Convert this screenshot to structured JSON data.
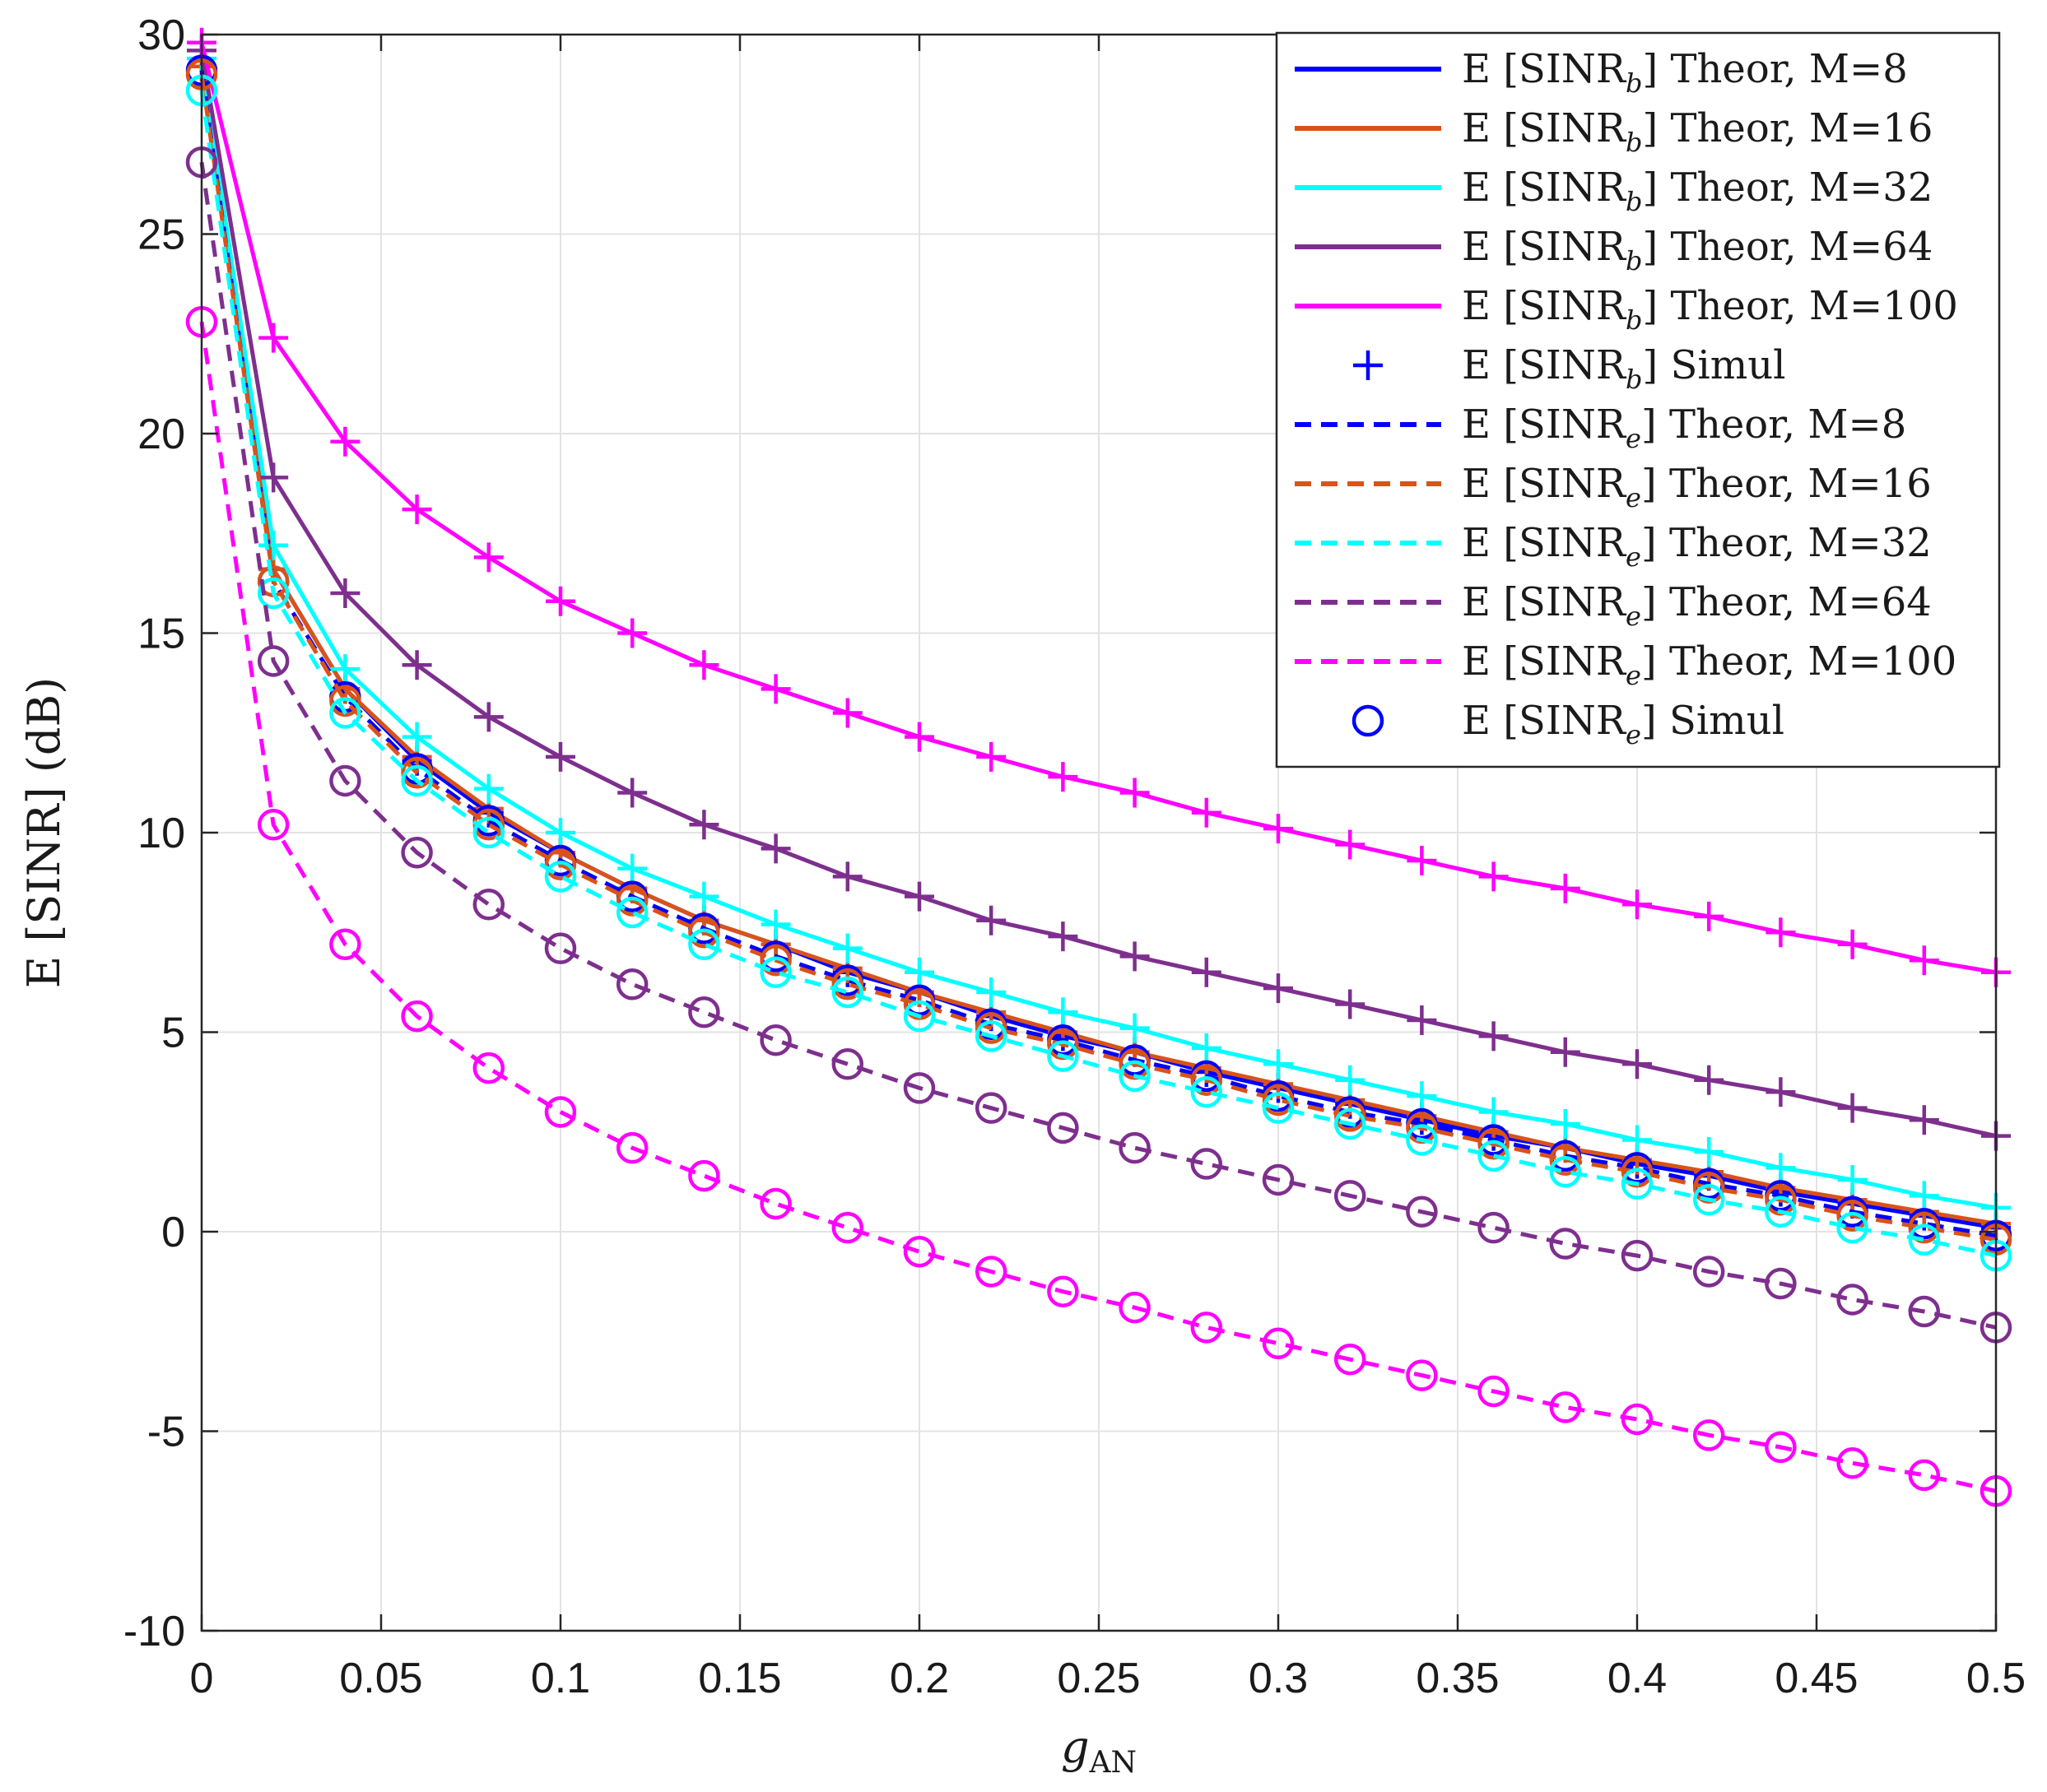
{
  "chart_data": {
    "type": "line",
    "title": "",
    "xlabel": "g",
    "xlabel_sub": "AN",
    "ylabel": "E [SINR] (dB)",
    "xlim": [
      0,
      0.5
    ],
    "ylim": [
      -10,
      30
    ],
    "grid": true,
    "legend_position": "top-right",
    "x_ticks": [
      "0",
      "0.05",
      "0.1",
      "0.15",
      "0.2",
      "0.25",
      "0.3",
      "0.35",
      "0.4",
      "0.45",
      "0.5"
    ],
    "y_ticks": [
      "-10",
      "-5",
      "0",
      "5",
      "10",
      "15",
      "20",
      "25",
      "30"
    ],
    "x_tick_values": [
      0,
      0.05,
      0.1,
      0.15,
      0.2,
      0.25,
      0.3,
      0.35,
      0.4,
      0.45,
      0.5
    ],
    "y_tick_values": [
      -10,
      -5,
      0,
      5,
      10,
      15,
      20,
      25,
      30
    ],
    "x": [
      0,
      0.02,
      0.04,
      0.06,
      0.08,
      0.1,
      0.12,
      0.14,
      0.16,
      0.18,
      0.2,
      0.22,
      0.24,
      0.26,
      0.28,
      0.3,
      0.32,
      0.34,
      0.36,
      0.38,
      0.4,
      0.42,
      0.44,
      0.46,
      0.48,
      0.5
    ],
    "series": [
      {
        "name": "E [SINR_b] Theor, M=8",
        "kind": "bob",
        "color": "#0000ff",
        "dashed": false,
        "marker": "plus",
        "values": [
          29.2,
          16.6,
          13.6,
          11.8,
          10.5,
          9.5,
          8.6,
          7.8,
          7.2,
          6.5,
          6.0,
          5.4,
          4.9,
          4.5,
          4.0,
          3.6,
          3.2,
          2.8,
          2.4,
          2.1,
          1.7,
          1.4,
          1.0,
          0.7,
          0.4,
          0.1
        ]
      },
      {
        "name": "E [SINR_b] Theor, M=16",
        "kind": "bob",
        "color": "#d95319",
        "dashed": false,
        "marker": "plus",
        "values": [
          29.2,
          16.6,
          13.6,
          11.9,
          10.6,
          9.5,
          8.6,
          7.8,
          7.2,
          6.6,
          6.0,
          5.5,
          5.0,
          4.5,
          4.1,
          3.7,
          3.3,
          2.9,
          2.5,
          2.1,
          1.8,
          1.5,
          1.1,
          0.8,
          0.5,
          0.2
        ]
      },
      {
        "name": "E [SINR_b] Theor, M=32",
        "kind": "bob",
        "color": "#00ffff",
        "dashed": false,
        "marker": "plus",
        "values": [
          29.4,
          17.2,
          14.1,
          12.4,
          11.1,
          10.0,
          9.1,
          8.4,
          7.7,
          7.1,
          6.5,
          6.0,
          5.5,
          5.1,
          4.6,
          4.2,
          3.8,
          3.4,
          3.0,
          2.7,
          2.3,
          2.0,
          1.6,
          1.3,
          0.9,
          0.6
        ]
      },
      {
        "name": "E [SINR_b] Theor, M=64",
        "kind": "bob",
        "color": "#7e2f8e",
        "dashed": false,
        "marker": "plus",
        "values": [
          29.6,
          18.9,
          16.0,
          14.2,
          12.9,
          11.9,
          11.0,
          10.2,
          9.6,
          8.9,
          8.4,
          7.8,
          7.4,
          6.9,
          6.5,
          6.1,
          5.7,
          5.3,
          4.9,
          4.5,
          4.2,
          3.8,
          3.5,
          3.1,
          2.8,
          2.4
        ]
      },
      {
        "name": "E [SINR_b] Theor, M=100",
        "kind": "bob",
        "color": "#ff00ff",
        "dashed": false,
        "marker": "plus",
        "values": [
          29.8,
          22.4,
          19.8,
          18.1,
          16.9,
          15.8,
          15.0,
          14.2,
          13.6,
          13.0,
          12.4,
          11.9,
          11.4,
          11.0,
          10.5,
          10.1,
          9.7,
          9.3,
          8.9,
          8.6,
          8.2,
          7.9,
          7.5,
          7.2,
          6.8,
          6.5
        ]
      },
      {
        "name": "E [SINR_e] Theor, M=8",
        "kind": "eve",
        "color": "#0000ff",
        "dashed": true,
        "marker": "circle",
        "values": [
          29.1,
          16.3,
          13.4,
          11.6,
          10.3,
          9.3,
          8.4,
          7.6,
          6.9,
          6.3,
          5.8,
          5.2,
          4.8,
          4.3,
          3.9,
          3.4,
          3.0,
          2.7,
          2.3,
          1.9,
          1.6,
          1.2,
          0.9,
          0.5,
          0.2,
          -0.1
        ]
      },
      {
        "name": "E [SINR_e] Theor, M=16",
        "kind": "eve",
        "color": "#d95319",
        "dashed": true,
        "marker": "circle",
        "values": [
          29.0,
          16.3,
          13.3,
          11.5,
          10.2,
          9.2,
          8.3,
          7.5,
          6.8,
          6.2,
          5.7,
          5.1,
          4.7,
          4.2,
          3.8,
          3.3,
          2.9,
          2.6,
          2.2,
          1.8,
          1.5,
          1.1,
          0.8,
          0.4,
          0.1,
          -0.2
        ]
      },
      {
        "name": "E [SINR_e] Theor, M=32",
        "kind": "eve",
        "color": "#00ffff",
        "dashed": true,
        "marker": "circle",
        "values": [
          28.6,
          16.0,
          13.0,
          11.3,
          10.0,
          8.9,
          8.0,
          7.2,
          6.5,
          6.0,
          5.4,
          4.9,
          4.4,
          3.9,
          3.5,
          3.1,
          2.7,
          2.3,
          1.9,
          1.5,
          1.2,
          0.8,
          0.5,
          0.1,
          -0.2,
          -0.6
        ]
      },
      {
        "name": "E [SINR_e] Theor, M=64",
        "kind": "eve",
        "color": "#7e2f8e",
        "dashed": true,
        "marker": "circle",
        "values": [
          26.8,
          14.3,
          11.3,
          9.5,
          8.2,
          7.1,
          6.2,
          5.5,
          4.8,
          4.2,
          3.6,
          3.1,
          2.6,
          2.1,
          1.7,
          1.3,
          0.9,
          0.5,
          0.1,
          -0.3,
          -0.6,
          -1.0,
          -1.3,
          -1.7,
          -2.0,
          -2.4
        ]
      },
      {
        "name": "E [SINR_e] Theor, M=100",
        "kind": "eve",
        "color": "#ff00ff",
        "dashed": true,
        "marker": "circle",
        "values": [
          22.8,
          10.2,
          7.2,
          5.4,
          4.1,
          3.0,
          2.1,
          1.4,
          0.7,
          0.1,
          -0.5,
          -1.0,
          -1.5,
          -1.9,
          -2.4,
          -2.8,
          -3.2,
          -3.6,
          -4.0,
          -4.4,
          -4.7,
          -5.1,
          -5.4,
          -5.8,
          -6.1,
          -6.5
        ]
      }
    ],
    "legend": [
      {
        "main": "E [SINR",
        "sub": "b",
        "rest": "]  Theor, M=8",
        "color": "#0000ff",
        "style": "solid"
      },
      {
        "main": "E [SINR",
        "sub": "b",
        "rest": "]  Theor, M=16",
        "color": "#d95319",
        "style": "solid"
      },
      {
        "main": "E [SINR",
        "sub": "b",
        "rest": "]  Theor, M=32",
        "color": "#00ffff",
        "style": "solid"
      },
      {
        "main": "E [SINR",
        "sub": "b",
        "rest": "]  Theor, M=64",
        "color": "#7e2f8e",
        "style": "solid"
      },
      {
        "main": "E [SINR",
        "sub": "b",
        "rest": "]  Theor, M=100",
        "color": "#ff00ff",
        "style": "solid"
      },
      {
        "main": "E [SINR",
        "sub": "b",
        "rest": "]  Simul",
        "color": "#0000ff",
        "style": "plus"
      },
      {
        "main": "E [SINR",
        "sub": "e",
        "rest": "]  Theor, M=8",
        "color": "#0000ff",
        "style": "dashed"
      },
      {
        "main": "E [SINR",
        "sub": "e",
        "rest": "]  Theor, M=16",
        "color": "#d95319",
        "style": "dashed"
      },
      {
        "main": "E [SINR",
        "sub": "e",
        "rest": "]  Theor, M=32",
        "color": "#00ffff",
        "style": "dashed"
      },
      {
        "main": "E [SINR",
        "sub": "e",
        "rest": "]  Theor, M=64",
        "color": "#7e2f8e",
        "style": "dashed"
      },
      {
        "main": "E [SINR",
        "sub": "e",
        "rest": "]  Theor, M=100",
        "color": "#ff00ff",
        "style": "dashed"
      },
      {
        "main": "E [SINR",
        "sub": "e",
        "rest": "]  Simul",
        "color": "#0000ff",
        "style": "circle"
      }
    ]
  }
}
